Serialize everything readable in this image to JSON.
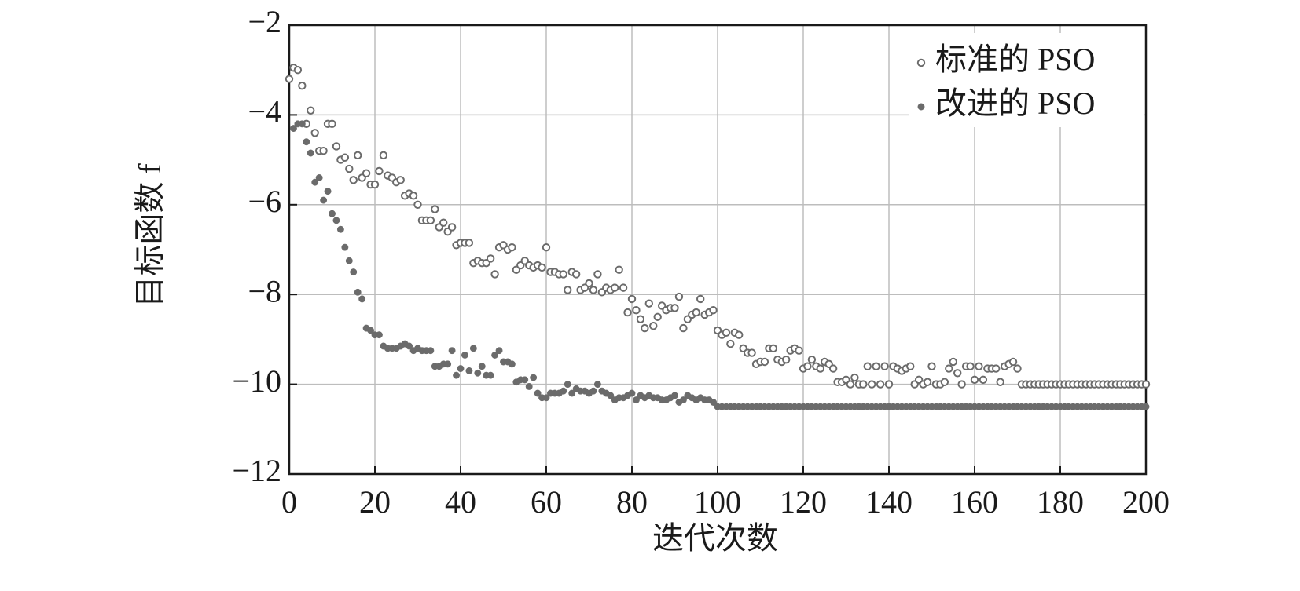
{
  "chart_data": {
    "type": "scatter",
    "x_label": "迭代次数",
    "y_label": "目标函数 f",
    "xlim": [
      0,
      200
    ],
    "ylim": [
      -12,
      -2
    ],
    "xticks": [
      0,
      20,
      40,
      60,
      80,
      100,
      120,
      140,
      160,
      180,
      200
    ],
    "yticks": [
      {
        "value": -2,
        "label": "−2"
      },
      {
        "value": -4,
        "label": "−4"
      },
      {
        "value": -6,
        "label": "−6"
      },
      {
        "value": -8,
        "label": "−8"
      },
      {
        "value": -10,
        "label": "−10"
      },
      {
        "value": -12,
        "label": "−12"
      }
    ],
    "grid": true,
    "legend": "upper right",
    "x": [
      0,
      1,
      2,
      3,
      4,
      5,
      6,
      7,
      8,
      9,
      10,
      11,
      12,
      13,
      14,
      15,
      16,
      17,
      18,
      19,
      20,
      21,
      22,
      23,
      24,
      25,
      26,
      27,
      28,
      29,
      30,
      31,
      32,
      33,
      34,
      35,
      36,
      37,
      38,
      39,
      40,
      41,
      42,
      43,
      44,
      45,
      46,
      47,
      48,
      49,
      50,
      51,
      52,
      53,
      54,
      55,
      56,
      57,
      58,
      59,
      60,
      61,
      62,
      63,
      64,
      65,
      66,
      67,
      68,
      69,
      70,
      71,
      72,
      73,
      74,
      75,
      76,
      77,
      78,
      79,
      80,
      81,
      82,
      83,
      84,
      85,
      86,
      87,
      88,
      89,
      90,
      91,
      92,
      93,
      94,
      95,
      96,
      97,
      98,
      99,
      100,
      101,
      102,
      103,
      104,
      105,
      106,
      107,
      108,
      109,
      110,
      111,
      112,
      113,
      114,
      115,
      116,
      117,
      118,
      119,
      120,
      121,
      122,
      123,
      124,
      125,
      126,
      127,
      128,
      129,
      130,
      131,
      132,
      133,
      134,
      135,
      136,
      137,
      138,
      139,
      140,
      141,
      142,
      143,
      144,
      145,
      146,
      147,
      148,
      149,
      150,
      151,
      152,
      153,
      154,
      155,
      156,
      157,
      158,
      159,
      160,
      161,
      162,
      163,
      164,
      165,
      166,
      167,
      168,
      169,
      170,
      171,
      172,
      173,
      174,
      175,
      176,
      177,
      178,
      179,
      180,
      181,
      182,
      183,
      184,
      185,
      186,
      187,
      188,
      189,
      190,
      191,
      192,
      193,
      194,
      195,
      196,
      197,
      198,
      199,
      200
    ],
    "series": [
      {
        "name": "标准的 PSO",
        "color": "#6b6b6b",
        "marker": "open",
        "values": [
          -3.2,
          -2.95,
          -3.0,
          -3.35,
          -4.2,
          -3.9,
          -4.4,
          -4.8,
          -4.8,
          -4.2,
          -4.2,
          -4.7,
          -5.0,
          -4.95,
          -5.2,
          -5.45,
          -4.9,
          -5.4,
          -5.3,
          -5.55,
          -5.55,
          -5.25,
          -4.9,
          -5.35,
          -5.4,
          -5.5,
          -5.45,
          -5.8,
          -5.75,
          -5.8,
          -6.0,
          -6.35,
          -6.35,
          -6.35,
          -6.1,
          -6.5,
          -6.4,
          -6.6,
          -6.5,
          -6.9,
          -6.85,
          -6.85,
          -6.85,
          -7.3,
          -7.25,
          -7.3,
          -7.3,
          -7.2,
          -7.55,
          -6.95,
          -6.9,
          -7.0,
          -6.95,
          -7.45,
          -7.35,
          -7.25,
          -7.35,
          -7.4,
          -7.35,
          -7.4,
          -6.95,
          -7.5,
          -7.5,
          -7.55,
          -7.55,
          -7.9,
          -7.5,
          -7.55,
          -7.9,
          -7.85,
          -7.75,
          -7.9,
          -7.55,
          -7.95,
          -7.85,
          -7.9,
          -7.85,
          -7.45,
          -7.85,
          -8.4,
          -8.1,
          -8.35,
          -8.55,
          -8.75,
          -8.2,
          -8.7,
          -8.5,
          -8.25,
          -8.35,
          -8.3,
          -8.3,
          -8.05,
          -8.75,
          -8.55,
          -8.45,
          -8.4,
          -8.1,
          -8.45,
          -8.4,
          -8.35,
          -8.8,
          -8.9,
          -8.85,
          -9.1,
          -8.85,
          -8.9,
          -9.2,
          -9.3,
          -9.3,
          -9.55,
          -9.5,
          -9.5,
          -9.2,
          -9.2,
          -9.45,
          -9.5,
          -9.45,
          -9.25,
          -9.2,
          -9.25,
          -9.65,
          -9.6,
          -9.45,
          -9.6,
          -9.65,
          -9.5,
          -9.55,
          -9.65,
          -9.95,
          -9.95,
          -9.9,
          -10,
          -9.85,
          -10,
          -10,
          -9.6,
          -10,
          -9.6,
          -10,
          -9.6,
          -10,
          -9.6,
          -9.65,
          -9.7,
          -9.65,
          -9.6,
          -10,
          -9.9,
          -10,
          -9.95,
          -9.6,
          -10,
          -10,
          -9.95,
          -9.65,
          -9.5,
          -9.75,
          -10,
          -9.6,
          -9.6,
          -9.9,
          -9.6,
          -9.9,
          -9.65,
          -9.65,
          -9.65,
          -9.95,
          -9.6,
          -9.55,
          -9.5,
          -9.65,
          -10,
          -10,
          -10,
          -10,
          -10,
          -10,
          -10,
          -10,
          -10,
          -10,
          -10,
          -10,
          -10,
          -10,
          -10,
          -10,
          -10,
          -10,
          -10,
          -10,
          -10,
          -10,
          -10,
          -10,
          -10,
          -10,
          -10,
          -10,
          -10,
          -10
        ]
      },
      {
        "name": "改进的 PSO",
        "color": "#6b6b6b",
        "marker": "filled",
        "values": [
          null,
          -4.3,
          -4.2,
          -4.2,
          -4.6,
          -4.85,
          -5.5,
          -5.4,
          -5.9,
          -5.7,
          -6.2,
          -6.35,
          -6.55,
          -6.95,
          -7.25,
          -7.5,
          -7.95,
          -8.1,
          -8.75,
          -8.8,
          -8.9,
          -8.9,
          -9.15,
          -9.2,
          -9.2,
          -9.2,
          -9.15,
          -9.1,
          -9.15,
          -9.25,
          -9.2,
          -9.25,
          -9.25,
          -9.25,
          -9.6,
          -9.6,
          -9.55,
          -9.55,
          -9.25,
          -9.8,
          -9.65,
          -9.35,
          -9.7,
          -9.2,
          -9.75,
          -9.6,
          -9.8,
          -9.8,
          -9.35,
          -9.25,
          -9.5,
          -9.5,
          -9.55,
          -9.95,
          -9.9,
          -9.9,
          -10.05,
          -9.85,
          -10.2,
          -10.3,
          -10.3,
          -10.2,
          -10.2,
          -10.2,
          -10.15,
          -10.0,
          -10.2,
          -10.1,
          -10.15,
          -10.15,
          -10.2,
          -10.15,
          -10.0,
          -10.15,
          -10.2,
          -10.25,
          -10.35,
          -10.3,
          -10.3,
          -10.25,
          -10.2,
          -10.35,
          -10.25,
          -10.3,
          -10.25,
          -10.3,
          -10.3,
          -10.35,
          -10.35,
          -10.3,
          -10.25,
          -10.4,
          -10.35,
          -10.25,
          -10.3,
          -10.35,
          -10.3,
          -10.35,
          -10.35,
          -10.4,
          -10.5,
          -10.5,
          -10.5,
          -10.5,
          -10.5,
          -10.5,
          -10.5,
          -10.5,
          -10.5,
          -10.5,
          -10.5,
          -10.5,
          -10.5,
          -10.5,
          -10.5,
          -10.5,
          -10.5,
          -10.5,
          -10.5,
          -10.5,
          -10.5,
          -10.5,
          -10.5,
          -10.5,
          -10.5,
          -10.5,
          -10.5,
          -10.5,
          -10.5,
          -10.5,
          -10.5,
          -10.5,
          -10.5,
          -10.5,
          -10.5,
          -10.5,
          -10.5,
          -10.5,
          -10.5,
          -10.5,
          -10.5,
          -10.5,
          -10.5,
          -10.5,
          -10.5,
          -10.5,
          -10.5,
          -10.5,
          -10.5,
          -10.5,
          -10.5,
          -10.5,
          -10.5,
          -10.5,
          -10.5,
          -10.5,
          -10.5,
          -10.5,
          -10.5,
          -10.5,
          -10.5,
          -10.5,
          -10.5,
          -10.5,
          -10.5,
          -10.5,
          -10.5,
          -10.5,
          -10.5,
          -10.5,
          -10.5,
          -10.5,
          -10.5,
          -10.5,
          -10.5,
          -10.5,
          -10.5,
          -10.5,
          -10.5,
          -10.5,
          -10.5,
          -10.5,
          -10.5,
          -10.5,
          -10.5,
          -10.5,
          -10.5,
          -10.5,
          -10.5,
          -10.5,
          -10.5,
          -10.5,
          -10.5,
          -10.5,
          -10.5,
          -10.5,
          -10.5,
          -10.5,
          -10.5,
          -10.5,
          -10.5
        ]
      }
    ]
  }
}
